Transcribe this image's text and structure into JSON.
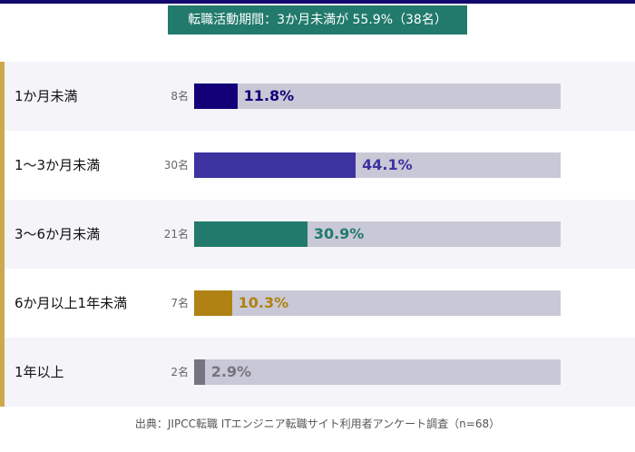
{
  "chart_data": {
    "type": "bar",
    "orientation": "horizontal",
    "title": "転職活動期間：3か月未満が 55.9%（38名）",
    "categories": [
      "1か月未満",
      "1〜3か月未満",
      "3〜6か月未満",
      "6か月以上1年未満",
      "1年以上"
    ],
    "values": [
      11.8,
      44.1,
      30.9,
      10.3,
      2.9
    ],
    "value_labels": [
      "11.8%",
      "44.1%",
      "30.9%",
      "10.3%",
      "2.9%"
    ],
    "counts": [
      "8名",
      "30名",
      "21名",
      "7名",
      "2名"
    ],
    "colors": [
      "#130078",
      "#3c32a0",
      "#217a6b",
      "#b08214",
      "#767480"
    ],
    "track_color": "#c9c8d6",
    "xlim": [
      0,
      100
    ],
    "source": "出典：JIPCC転職 ITエンジニア転職サイト利用者アンケート調査（n=68）"
  }
}
